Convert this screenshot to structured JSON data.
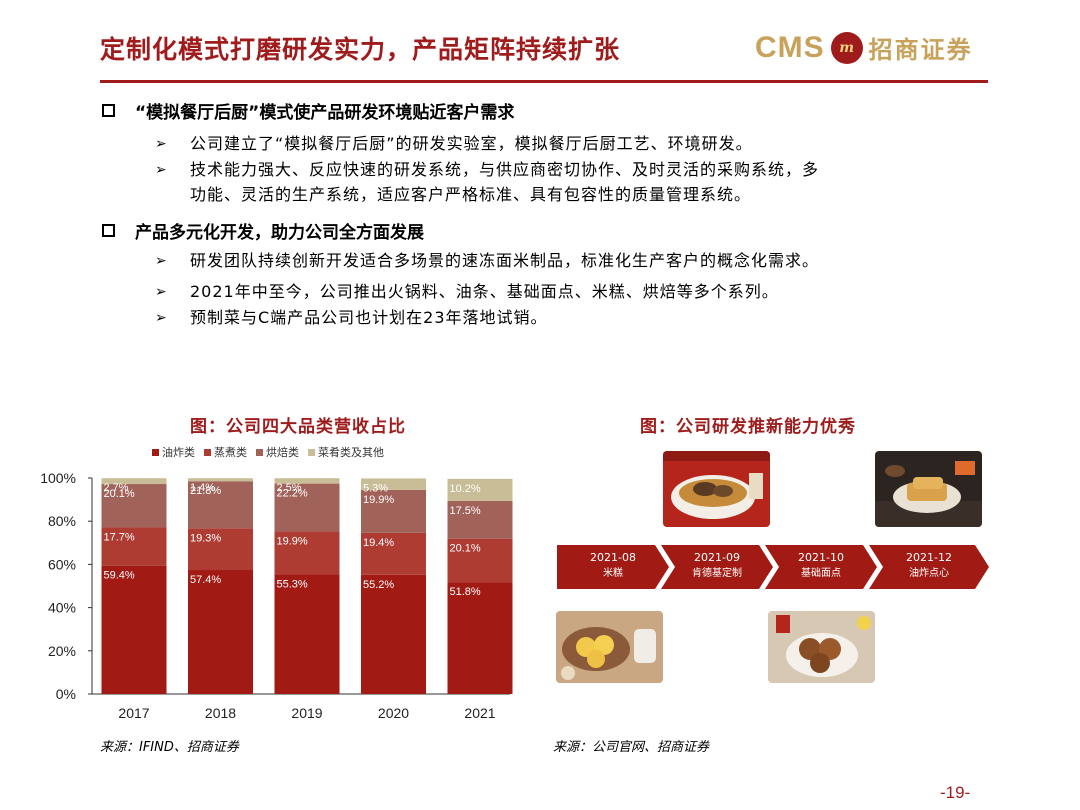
{
  "header": {
    "title": "定制化模式打磨研发实力，产品矩阵持续扩张",
    "logo_cms": "CMS",
    "logo_badge": "m",
    "logo_cn": "招商证券"
  },
  "sections": [
    {
      "heading": "“模拟餐厅后厨”模式使产品研发环境贴近客户需求",
      "bullets": [
        "公司建立了“模拟餐厅后厨”的研发实验室，模拟餐厅后厨工艺、环境研发。",
        "技术能力强大、反应快速的研发系统，与供应商密切协作、及时灵活的采购系统，多",
        "功能、灵活的生产系统，适应客户严格标准、具有包容性的质量管理系统。"
      ]
    },
    {
      "heading": "产品多元化开发，助力公司全方面发展",
      "bullets": [
        "研发团队持续创新开发适合多场景的速冻面米制品，标准化生产客户的概念化需求。",
        "2021年中至今，公司推出火锅料、油条、基础面点、米糕、烘焙等多个系列。",
        "预制菜与C端产品公司也计划在23年落地试销。"
      ]
    }
  ],
  "left_figure": {
    "title": "图：公司四大品类营收占比",
    "source": "来源：IFIND、招商证券"
  },
  "right_figure": {
    "title": "图：公司研发推新能力优秀",
    "source": "来源：公司官网、招商证券",
    "timeline": [
      {
        "date": "2021-08",
        "label": "米糕"
      },
      {
        "date": "2021-09",
        "label": "肯德基定制"
      },
      {
        "date": "2021-10",
        "label": "基础面点"
      },
      {
        "date": "2021-12",
        "label": "油炸点心"
      }
    ]
  },
  "chart_data": {
    "type": "bar",
    "stacked": true,
    "categories": [
      "2017",
      "2018",
      "2019",
      "2020",
      "2021"
    ],
    "series": [
      {
        "name": "油炸类",
        "color": "#a11a14",
        "values": [
          59.4,
          57.4,
          55.3,
          55.2,
          51.8
        ],
        "labels": [
          "59.4%",
          "57.4%",
          "55.3%",
          "55.2%",
          "51.8%"
        ]
      },
      {
        "name": "蒸煮类",
        "color": "#ae3c33",
        "values": [
          17.7,
          19.3,
          19.9,
          19.4,
          20.1
        ],
        "labels": [
          "17.7%",
          "19.3%",
          "19.9%",
          "19.4%",
          "20.1%"
        ]
      },
      {
        "name": "烘焙类",
        "color": "#a06259",
        "values": [
          20.1,
          21.8,
          22.2,
          19.9,
          17.5
        ],
        "labels": [
          "20.1%",
          "21.8%",
          "22.2%",
          "19.9%",
          "17.5%"
        ]
      },
      {
        "name": "菜肴类及其他",
        "color": "#c8bd97",
        "values": [
          2.7,
          1.4,
          2.5,
          5.3,
          10.2
        ],
        "labels": [
          "2.7%",
          "1.4%",
          "2.5%",
          "5.3%",
          "10.2%"
        ]
      }
    ],
    "ylim": [
      0,
      100
    ],
    "yticks": [
      "0%",
      "20%",
      "40%",
      "60%",
      "80%",
      "100%"
    ],
    "legend_position": "top"
  },
  "page": {
    "number": "-19-"
  }
}
